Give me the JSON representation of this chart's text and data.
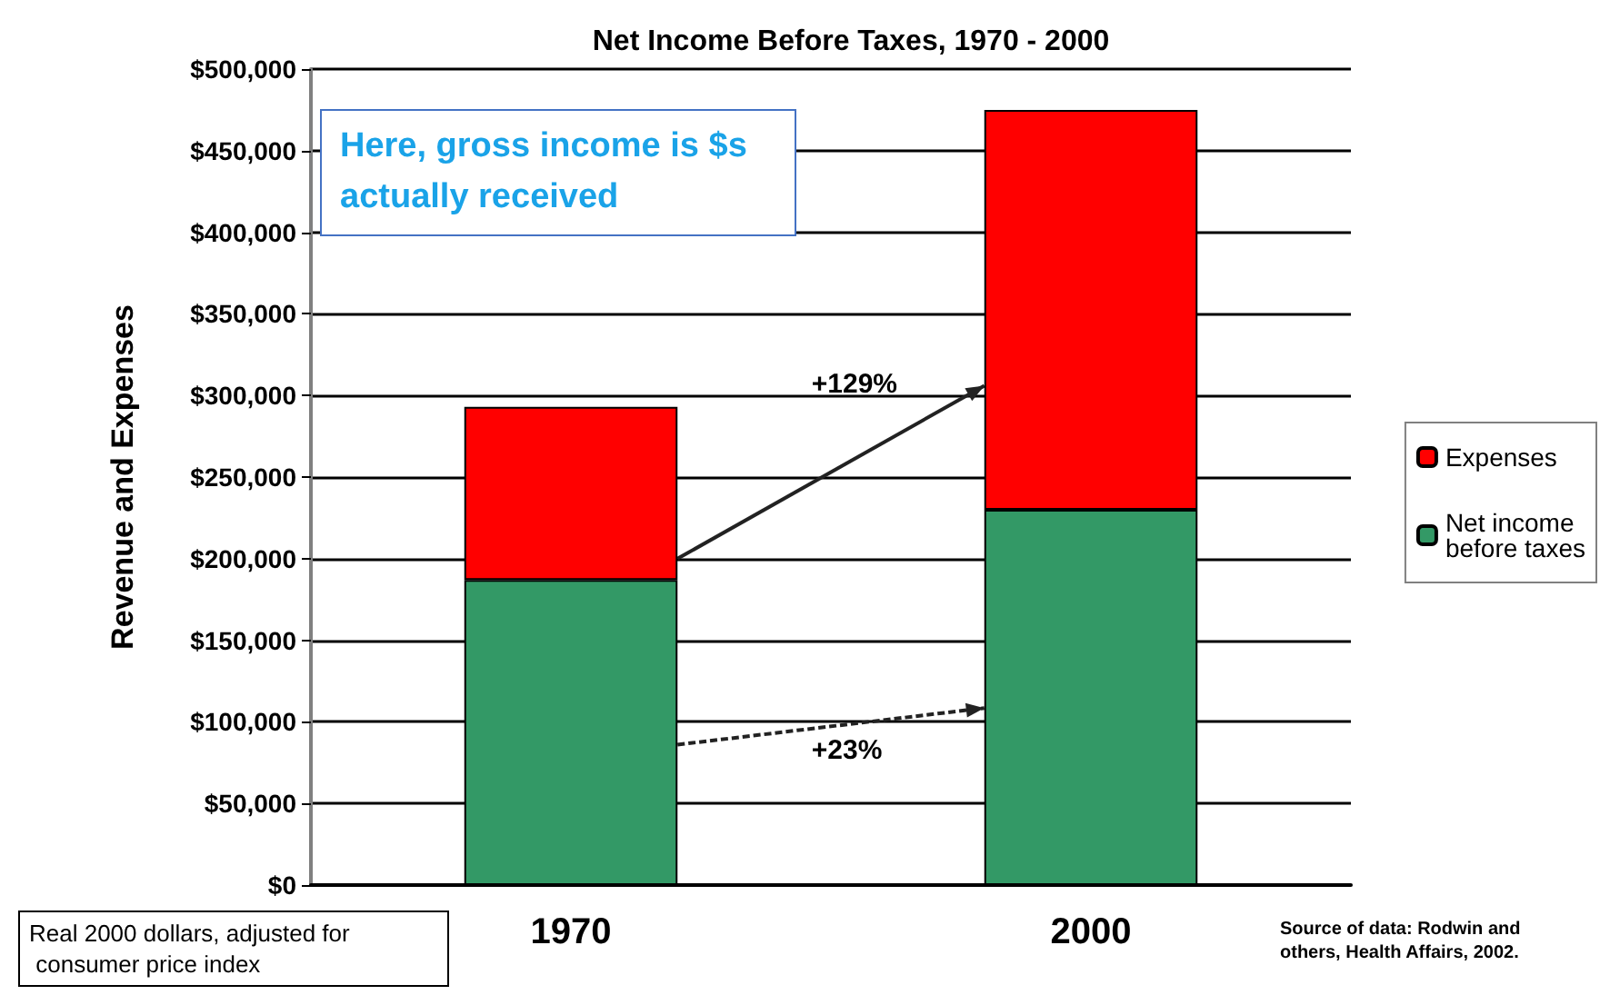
{
  "chart_data": {
    "type": "bar",
    "title": "Net Income Before Taxes, 1970 - 2000",
    "ylabel": "Revenue and Expenses",
    "categories": [
      "1970",
      "2000"
    ],
    "stacked": true,
    "series": [
      {
        "name": "Net income before taxes",
        "color": "#339966",
        "values": [
          187000,
          230000
        ]
      },
      {
        "name": "Expenses",
        "color": "#ff0000",
        "values": [
          106000,
          245000
        ]
      }
    ],
    "ylim": [
      0,
      500000
    ],
    "yticks": [
      {
        "value": 0,
        "label": "$0"
      },
      {
        "value": 50000,
        "label": "$50,000"
      },
      {
        "value": 100000,
        "label": "$100,000"
      },
      {
        "value": 150000,
        "label": "$150,000"
      },
      {
        "value": 200000,
        "label": "$200,000"
      },
      {
        "value": 250000,
        "label": "$250,000"
      },
      {
        "value": 300000,
        "label": "$300,000"
      },
      {
        "value": 350000,
        "label": "$350,000"
      },
      {
        "value": 400000,
        "label": "$400,000"
      },
      {
        "value": 450000,
        "label": "$450,000"
      },
      {
        "value": 500000,
        "label": "$500,000"
      }
    ],
    "grid": "y",
    "legend": "right",
    "annotations": [
      "Here, gross income is $s actually received",
      "+129%",
      "+23%",
      "Real 2000 dollars, adjusted for consumer price index",
      "Source of data: Rodwin and others, Health Affairs, 2002."
    ]
  }
}
